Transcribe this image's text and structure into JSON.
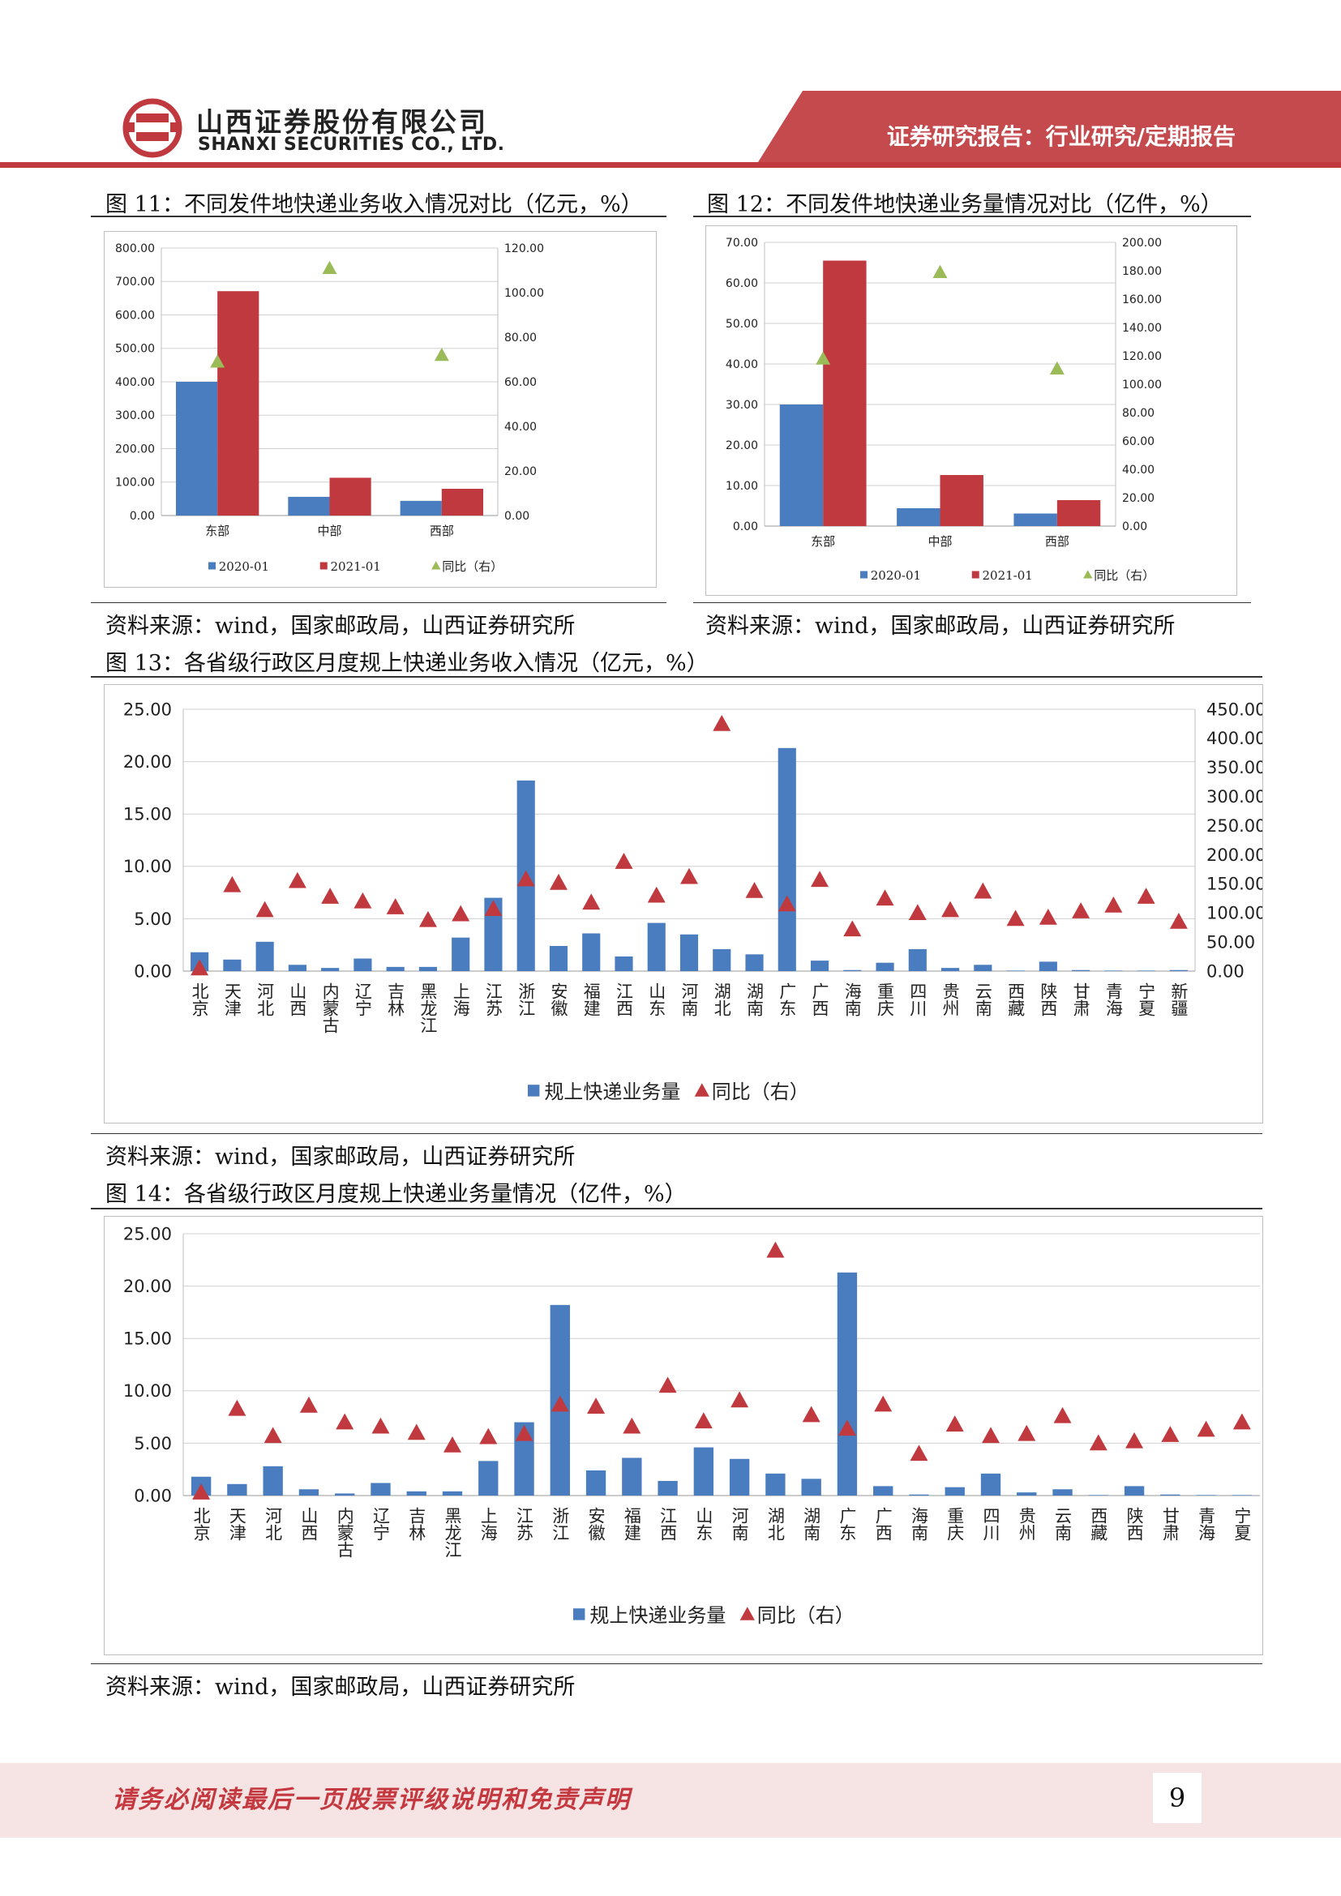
{
  "header": {
    "company_cn": "山西证券股份有限公司",
    "company_en": "SHANXI SECURITIES CO., LTD.",
    "report_type": "证券研究报告：行业研究/定期报告",
    "colors": {
      "brand_red": "#c0393e",
      "band_red": "#c44a4e",
      "light_pink": "#f6e3e4"
    },
    "logo_icon": "shanxi-securities-logo-icon"
  },
  "figures": {
    "fig11": {
      "title": "图 11：不同发件地快递业务收入情况对比（亿元，%）",
      "source": "资料来源：wind，国家邮政局，山西证券研究所"
    },
    "fig12": {
      "title": "图 12：不同发件地快递业务量情况对比（亿件，%）",
      "source": "资料来源：wind，国家邮政局，山西证券研究所"
    },
    "fig13": {
      "title": "图 13：各省级行政区月度规上快递业务收入情况（亿元，%）",
      "source": "资料来源：wind，国家邮政局，山西证券研究所"
    },
    "fig14": {
      "title": "图 14：各省级行政区月度规上快递业务量情况（亿件，%）",
      "source": "资料来源：wind，国家邮政局，山西证券研究所"
    }
  },
  "chart_data": [
    {
      "id": "fig11",
      "type": "bar",
      "categories": [
        "东部",
        "中部",
        "西部"
      ],
      "series": [
        {
          "name": "2020-01",
          "type": "bar",
          "axis": "left",
          "color": "#4a7dbf",
          "values": [
            400,
            56,
            44
          ]
        },
        {
          "name": "2021-01",
          "type": "bar",
          "axis": "left",
          "color": "#c0393e",
          "values": [
            671,
            113,
            80
          ]
        },
        {
          "name": "同比（右）",
          "type": "scatter",
          "marker": "triangle",
          "axis": "right",
          "color": "#9bbb59",
          "values": [
            69,
            111,
            72
          ]
        }
      ],
      "ylim": [
        0,
        800
      ],
      "ylim_right": [
        0,
        120
      ],
      "yticks": [
        "0.00",
        "100.00",
        "200.00",
        "300.00",
        "400.00",
        "500.00",
        "600.00",
        "700.00",
        "800.00"
      ],
      "yticks_right": [
        "0.00",
        "20.00",
        "40.00",
        "60.00",
        "80.00",
        "100.00",
        "120.00"
      ],
      "grid": true,
      "legend": "bottom"
    },
    {
      "id": "fig12",
      "type": "bar",
      "categories": [
        "东部",
        "中部",
        "西部"
      ],
      "series": [
        {
          "name": "2020-01",
          "type": "bar",
          "axis": "left",
          "color": "#4a7dbf",
          "values": [
            30,
            4.4,
            3.1
          ]
        },
        {
          "name": "2021-01",
          "type": "bar",
          "axis": "left",
          "color": "#c0393e",
          "values": [
            65.5,
            12.6,
            6.4
          ]
        },
        {
          "name": "同比（右）",
          "type": "scatter",
          "marker": "triangle",
          "axis": "right",
          "color": "#9bbb59",
          "values": [
            118,
            179,
            111
          ]
        }
      ],
      "ylim": [
        0,
        70
      ],
      "ylim_right": [
        0,
        200
      ],
      "yticks": [
        "0.00",
        "10.00",
        "20.00",
        "30.00",
        "40.00",
        "50.00",
        "60.00",
        "70.00"
      ],
      "yticks_right": [
        "0.00",
        "20.00",
        "40.00",
        "60.00",
        "80.00",
        "100.00",
        "120.00",
        "140.00",
        "160.00",
        "180.00",
        "200.00"
      ],
      "grid": true,
      "legend": "bottom"
    },
    {
      "id": "fig13",
      "type": "bar",
      "categories": [
        "北京",
        "天津",
        "河北",
        "山西",
        "内蒙古",
        "辽宁",
        "吉林",
        "黑龙江",
        "上海",
        "江苏",
        "浙江",
        "安徽",
        "福建",
        "江西",
        "山东",
        "河南",
        "湖北",
        "湖南",
        "广东",
        "广西",
        "海南",
        "重庆",
        "四川",
        "贵州",
        "云南",
        "西藏",
        "陕西",
        "甘肃",
        "青海",
        "宁夏",
        "新疆"
      ],
      "series": [
        {
          "name": "规上快递业务量",
          "type": "bar",
          "axis": "left",
          "color": "#4a7dbf",
          "values": [
            1.8,
            1.1,
            2.8,
            0.6,
            0.3,
            1.2,
            0.4,
            0.4,
            3.2,
            7.0,
            18.2,
            2.4,
            3.6,
            1.4,
            4.6,
            3.5,
            2.1,
            1.6,
            21.3,
            1.0,
            0.1,
            0.8,
            2.1,
            0.3,
            0.6,
            0.05,
            0.9,
            0.1,
            0.05,
            0.05,
            0.1
          ]
        },
        {
          "name": "同比（右）",
          "type": "scatter",
          "marker": "triangle",
          "axis": "right",
          "color": "#c0393e",
          "values": [
            5,
            148,
            105,
            155,
            128,
            120,
            110,
            88,
            98,
            107,
            158,
            152,
            118,
            188,
            130,
            162,
            425,
            138,
            115,
            157,
            72,
            125,
            100,
            105,
            137,
            90,
            92,
            103,
            113,
            128,
            85
          ]
        }
      ],
      "ylim": [
        0,
        25
      ],
      "ylim_right": [
        0,
        450
      ],
      "yticks": [
        "0.00",
        "5.00",
        "10.00",
        "15.00",
        "20.00",
        "25.00"
      ],
      "yticks_right": [
        "0.00",
        "50.00",
        "100.00",
        "150.00",
        "200.00",
        "250.00",
        "300.00",
        "350.00",
        "400.00",
        "450.00"
      ],
      "grid": true,
      "legend": "bottom"
    },
    {
      "id": "fig14",
      "type": "bar",
      "categories": [
        "北京",
        "天津",
        "河北",
        "山西",
        "内蒙古",
        "辽宁",
        "吉林",
        "黑龙江",
        "上海",
        "江苏",
        "浙江",
        "安徽",
        "福建",
        "江西",
        "山东",
        "河南",
        "湖北",
        "湖南",
        "广东",
        "广西",
        "海南",
        "重庆",
        "四川",
        "贵州",
        "云南",
        "西藏",
        "陕西",
        "甘肃",
        "青海",
        "宁夏"
      ],
      "series": [
        {
          "name": "规上快递业务量",
          "type": "bar",
          "axis": "left",
          "color": "#4a7dbf",
          "values": [
            1.8,
            1.1,
            2.8,
            0.6,
            0.2,
            1.2,
            0.4,
            0.4,
            3.3,
            7.0,
            18.2,
            2.4,
            3.6,
            1.4,
            4.6,
            3.5,
            2.1,
            1.6,
            21.3,
            0.9,
            0.1,
            0.8,
            2.1,
            0.3,
            0.6,
            0.05,
            0.9,
            0.1,
            0.05,
            0.05
          ]
        },
        {
          "name": "同比（右）",
          "type": "scatter",
          "marker": "triangle",
          "axis": "right",
          "color": "#c0393e",
          "values": [
            0.3,
            8.3,
            5.7,
            8.6,
            7.0,
            6.6,
            6.0,
            4.8,
            5.6,
            5.9,
            8.7,
            8.5,
            6.6,
            10.5,
            7.1,
            9.1,
            23.4,
            7.7,
            6.4,
            8.7,
            4.0,
            6.8,
            5.7,
            5.9,
            7.6,
            5.0,
            5.2,
            5.8,
            6.3,
            7.0
          ]
        }
      ],
      "ylim": [
        0,
        25
      ],
      "yticks": [
        "0.00",
        "5.00",
        "10.00",
        "15.00",
        "20.00",
        "25.00"
      ],
      "grid": true,
      "legend": "bottom"
    }
  ],
  "footer": {
    "disclaimer": "请务必阅读最后一页股票评级说明和免责声明",
    "page_number": "9"
  }
}
